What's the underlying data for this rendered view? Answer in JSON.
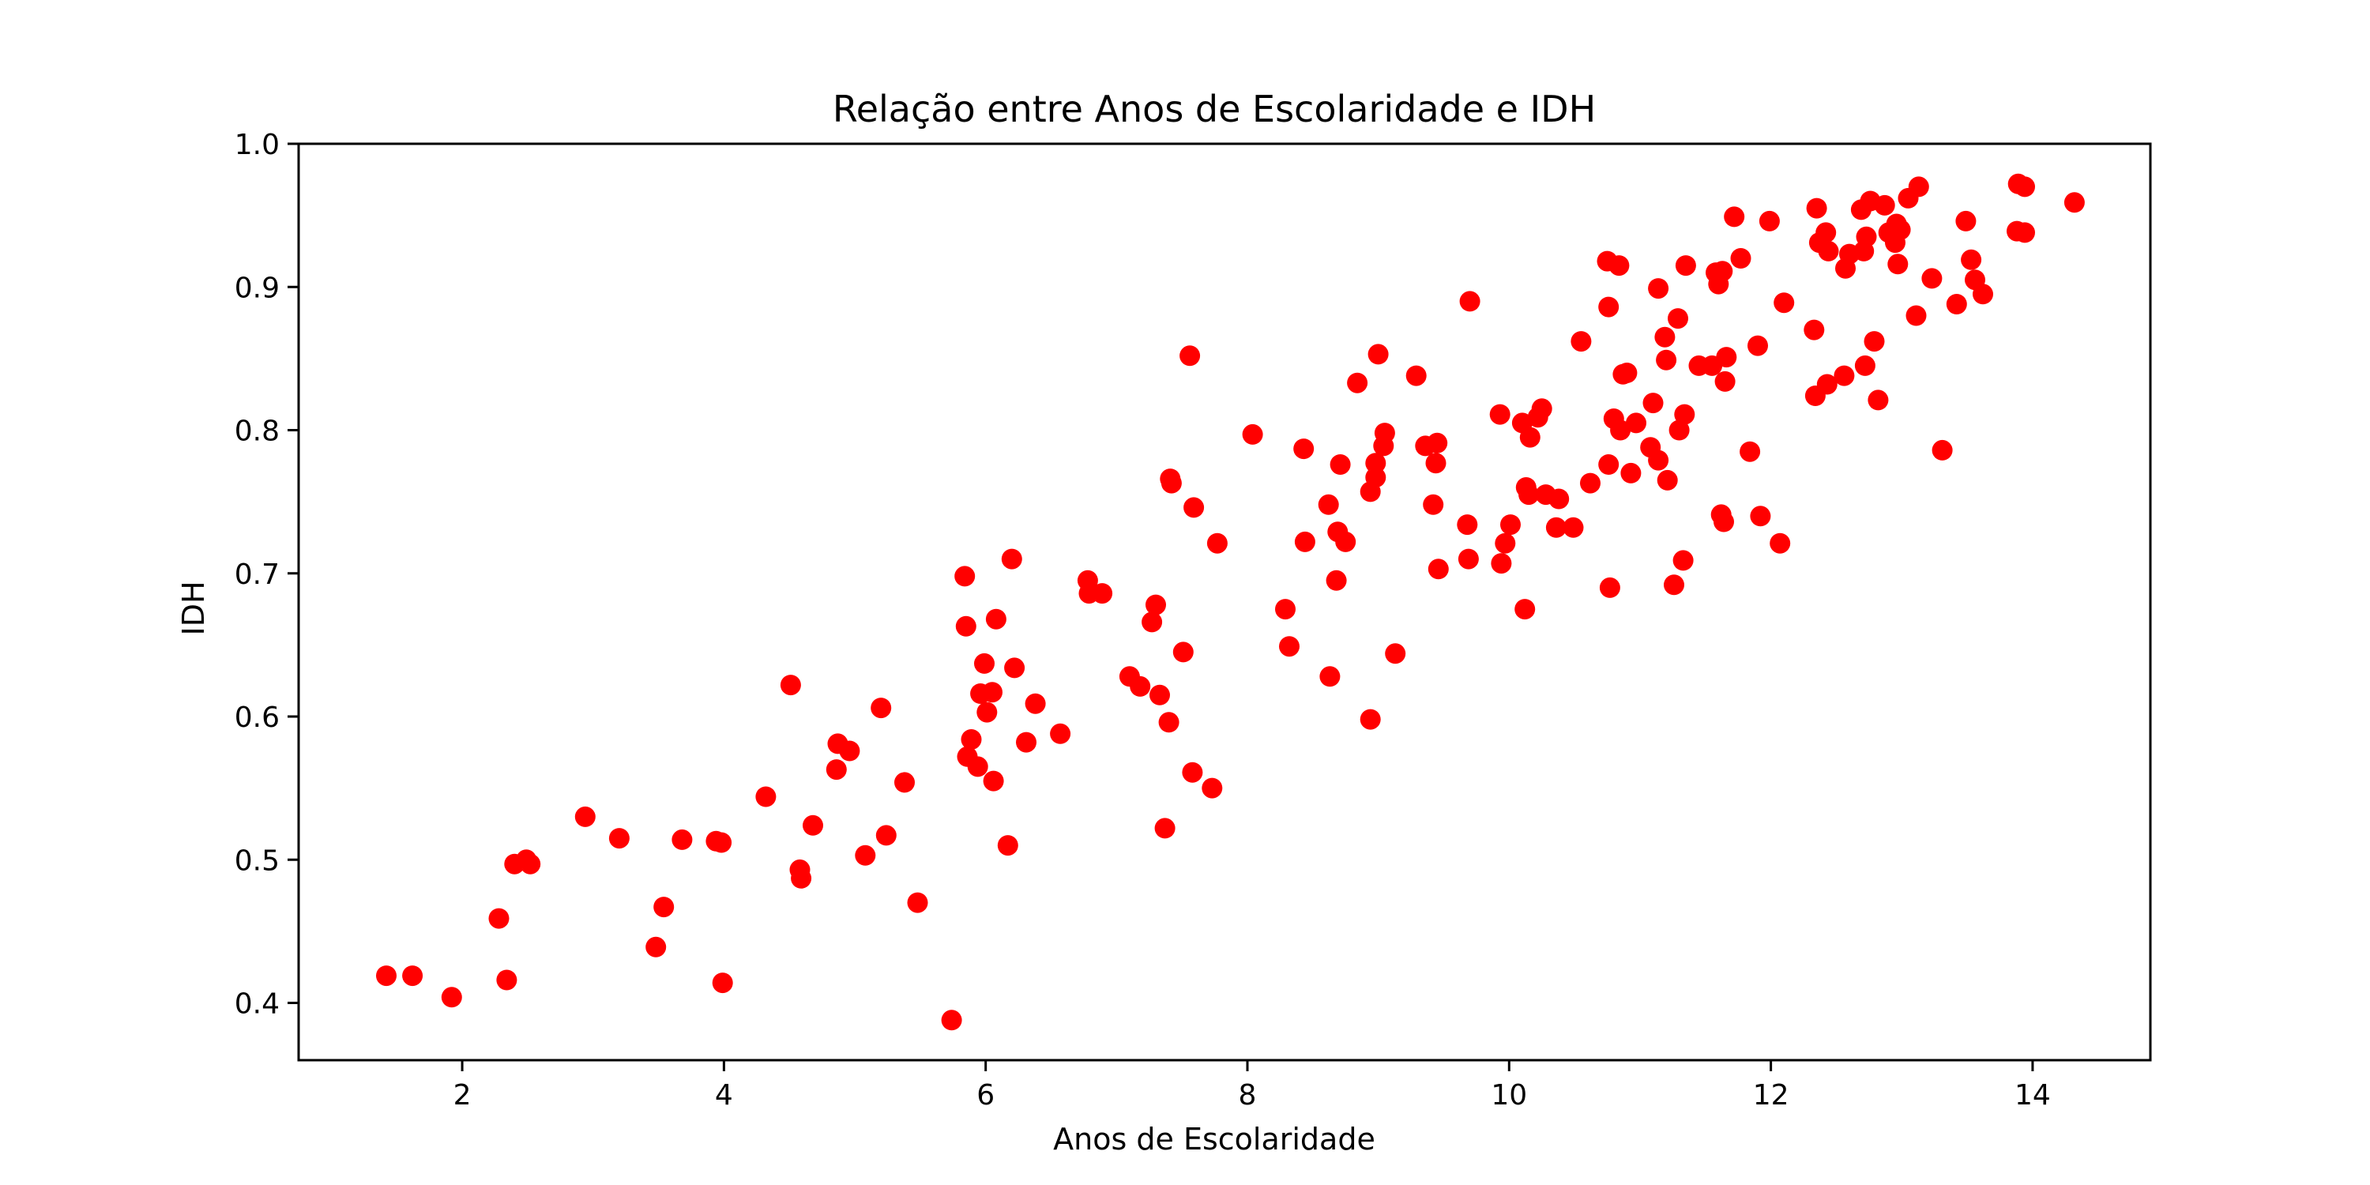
{
  "chart_data": {
    "type": "scatter",
    "title": "Relação entre Anos de Escolaridade e IDH",
    "xlabel": "Anos de Escolaridade",
    "ylabel": "IDH",
    "xlim": [
      0.75,
      14.9
    ],
    "ylim": [
      0.36,
      1.0
    ],
    "xticks": [
      2,
      4,
      6,
      8,
      10,
      12,
      14
    ],
    "yticks": [
      0.4,
      0.5,
      0.6,
      0.7,
      0.8,
      0.9,
      1.0
    ],
    "xtick_labels": [
      "2",
      "4",
      "6",
      "8",
      "10",
      "12",
      "14"
    ],
    "ytick_labels": [
      "0.4",
      "0.5",
      "0.6",
      "0.7",
      "0.8",
      "0.9",
      "1.0"
    ],
    "grid": false,
    "marker_color": "#ff0000",
    "series": [
      {
        "points": [
          [
            1.42,
            0.419
          ],
          [
            1.62,
            0.419
          ],
          [
            1.92,
            0.404
          ],
          [
            2.28,
            0.459
          ],
          [
            2.34,
            0.416
          ],
          [
            2.4,
            0.497
          ],
          [
            2.49,
            0.5
          ],
          [
            2.52,
            0.497
          ],
          [
            2.94,
            0.53
          ],
          [
            3.2,
            0.515
          ],
          [
            3.48,
            0.439
          ],
          [
            3.54,
            0.467
          ],
          [
            3.68,
            0.514
          ],
          [
            3.94,
            0.513
          ],
          [
            3.98,
            0.512
          ],
          [
            3.99,
            0.414
          ],
          [
            4.32,
            0.544
          ],
          [
            4.51,
            0.622
          ],
          [
            4.58,
            0.493
          ],
          [
            4.59,
            0.487
          ],
          [
            4.68,
            0.524
          ],
          [
            4.86,
            0.563
          ],
          [
            4.87,
            0.581
          ],
          [
            4.96,
            0.576
          ],
          [
            5.08,
            0.503
          ],
          [
            5.2,
            0.606
          ],
          [
            5.24,
            0.517
          ],
          [
            5.38,
            0.554
          ],
          [
            5.48,
            0.47
          ],
          [
            5.74,
            0.388
          ],
          [
            5.84,
            0.698
          ],
          [
            5.85,
            0.663
          ],
          [
            5.86,
            0.572
          ],
          [
            5.89,
            0.584
          ],
          [
            5.94,
            0.565
          ],
          [
            5.96,
            0.616
          ],
          [
            5.99,
            0.637
          ],
          [
            6.01,
            0.603
          ],
          [
            6.05,
            0.617
          ],
          [
            6.06,
            0.555
          ],
          [
            6.08,
            0.668
          ],
          [
            6.17,
            0.51
          ],
          [
            6.2,
            0.71
          ],
          [
            6.22,
            0.634
          ],
          [
            6.31,
            0.582
          ],
          [
            6.38,
            0.609
          ],
          [
            6.57,
            0.588
          ],
          [
            6.78,
            0.695
          ],
          [
            6.79,
            0.686
          ],
          [
            6.89,
            0.686
          ],
          [
            7.1,
            0.628
          ],
          [
            7.18,
            0.621
          ],
          [
            7.27,
            0.666
          ],
          [
            7.3,
            0.678
          ],
          [
            7.33,
            0.615
          ],
          [
            7.37,
            0.522
          ],
          [
            7.4,
            0.596
          ],
          [
            7.41,
            0.766
          ],
          [
            7.42,
            0.763
          ],
          [
            7.51,
            0.645
          ],
          [
            7.56,
            0.852
          ],
          [
            7.58,
            0.561
          ],
          [
            7.59,
            0.746
          ],
          [
            7.73,
            0.55
          ],
          [
            7.77,
            0.721
          ],
          [
            8.04,
            0.797
          ],
          [
            8.29,
            0.675
          ],
          [
            8.32,
            0.649
          ],
          [
            8.43,
            0.787
          ],
          [
            8.44,
            0.722
          ],
          [
            8.62,
            0.748
          ],
          [
            8.63,
            0.628
          ],
          [
            8.68,
            0.695
          ],
          [
            8.69,
            0.729
          ],
          [
            8.71,
            0.776
          ],
          [
            8.75,
            0.722
          ],
          [
            8.84,
            0.833
          ],
          [
            8.94,
            0.757
          ],
          [
            8.94,
            0.598
          ],
          [
            8.98,
            0.767
          ],
          [
            8.98,
            0.777
          ],
          [
            9.0,
            0.853
          ],
          [
            9.04,
            0.789
          ],
          [
            9.05,
            0.798
          ],
          [
            9.13,
            0.644
          ],
          [
            9.29,
            0.838
          ],
          [
            9.36,
            0.789
          ],
          [
            9.42,
            0.748
          ],
          [
            9.44,
            0.777
          ],
          [
            9.45,
            0.791
          ],
          [
            9.46,
            0.703
          ],
          [
            9.68,
            0.734
          ],
          [
            9.69,
            0.71
          ],
          [
            9.7,
            0.89
          ],
          [
            9.93,
            0.811
          ],
          [
            9.94,
            0.707
          ],
          [
            9.97,
            0.721
          ],
          [
            10.01,
            0.734
          ],
          [
            10.1,
            0.805
          ],
          [
            10.12,
            0.675
          ],
          [
            10.13,
            0.76
          ],
          [
            10.15,
            0.755
          ],
          [
            10.16,
            0.795
          ],
          [
            10.22,
            0.809
          ],
          [
            10.25,
            0.815
          ],
          [
            10.28,
            0.755
          ],
          [
            10.36,
            0.732
          ],
          [
            10.38,
            0.752
          ],
          [
            10.49,
            0.732
          ],
          [
            10.55,
            0.862
          ],
          [
            10.62,
            0.763
          ],
          [
            10.75,
            0.918
          ],
          [
            10.76,
            0.886
          ],
          [
            10.76,
            0.776
          ],
          [
            10.77,
            0.69
          ],
          [
            10.8,
            0.808
          ],
          [
            10.84,
            0.915
          ],
          [
            10.85,
            0.8
          ],
          [
            10.87,
            0.839
          ],
          [
            10.9,
            0.84
          ],
          [
            10.93,
            0.77
          ],
          [
            10.97,
            0.805
          ],
          [
            11.08,
            0.788
          ],
          [
            11.1,
            0.819
          ],
          [
            11.14,
            0.899
          ],
          [
            11.14,
            0.779
          ],
          [
            11.19,
            0.865
          ],
          [
            11.2,
            0.849
          ],
          [
            11.21,
            0.765
          ],
          [
            11.26,
            0.692
          ],
          [
            11.29,
            0.878
          ],
          [
            11.3,
            0.8
          ],
          [
            11.33,
            0.709
          ],
          [
            11.34,
            0.811
          ],
          [
            11.35,
            0.915
          ],
          [
            11.45,
            0.845
          ],
          [
            11.55,
            0.845
          ],
          [
            11.58,
            0.91
          ],
          [
            11.6,
            0.902
          ],
          [
            11.62,
            0.741
          ],
          [
            11.63,
            0.911
          ],
          [
            11.64,
            0.736
          ],
          [
            11.65,
            0.834
          ],
          [
            11.66,
            0.851
          ],
          [
            11.72,
            0.949
          ],
          [
            11.77,
            0.92
          ],
          [
            11.84,
            0.785
          ],
          [
            11.9,
            0.859
          ],
          [
            11.92,
            0.74
          ],
          [
            11.99,
            0.946
          ],
          [
            12.07,
            0.721
          ],
          [
            12.1,
            0.889
          ],
          [
            12.33,
            0.87
          ],
          [
            12.34,
            0.824
          ],
          [
            12.35,
            0.955
          ],
          [
            12.37,
            0.931
          ],
          [
            12.42,
            0.938
          ],
          [
            12.43,
            0.832
          ],
          [
            12.44,
            0.925
          ],
          [
            12.56,
            0.838
          ],
          [
            12.57,
            0.913
          ],
          [
            12.6,
            0.923
          ],
          [
            12.69,
            0.954
          ],
          [
            12.71,
            0.925
          ],
          [
            12.72,
            0.845
          ],
          [
            12.73,
            0.935
          ],
          [
            12.76,
            0.96
          ],
          [
            12.79,
            0.862
          ],
          [
            12.82,
            0.821
          ],
          [
            12.87,
            0.957
          ],
          [
            12.9,
            0.938
          ],
          [
            12.95,
            0.931
          ],
          [
            12.96,
            0.944
          ],
          [
            12.97,
            0.916
          ],
          [
            12.99,
            0.94
          ],
          [
            13.05,
            0.962
          ],
          [
            13.11,
            0.88
          ],
          [
            13.13,
            0.97
          ],
          [
            13.23,
            0.906
          ],
          [
            13.31,
            0.786
          ],
          [
            13.42,
            0.888
          ],
          [
            13.49,
            0.946
          ],
          [
            13.53,
            0.919
          ],
          [
            13.56,
            0.905
          ],
          [
            13.62,
            0.895
          ],
          [
            13.88,
            0.939
          ],
          [
            13.89,
            0.972
          ],
          [
            13.94,
            0.97
          ],
          [
            13.94,
            0.938
          ],
          [
            14.32,
            0.959
          ]
        ]
      }
    ]
  }
}
